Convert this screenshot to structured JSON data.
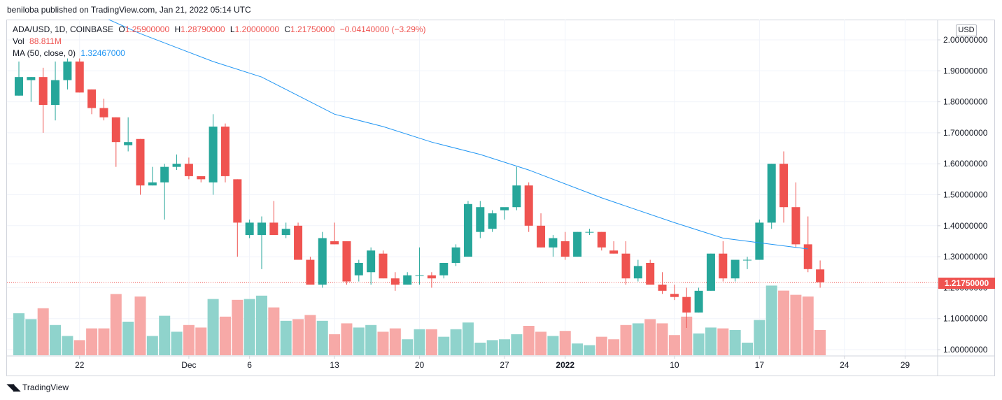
{
  "header": {
    "publish_text": "beniloba published on TradingView.com, Jan 21, 2022 05:14 UTC"
  },
  "legend": {
    "symbol": "ADA/USD, 1D, COINBASE",
    "o_label": "O",
    "o_value": "1.25900000",
    "h_label": "H",
    "h_value": "1.28790000",
    "l_label": "L",
    "l_value": "1.20000000",
    "c_label": "C",
    "c_value": "1.21750000",
    "change": "−0.04140000 (−3.29%)",
    "vol_label": "Vol",
    "vol_value": "88.811M",
    "ma_label": "MA (50, close, 0)",
    "ma_value": "1.32467000"
  },
  "price_scale": {
    "currency_button": "USD",
    "last_price_label": "1.21750000"
  },
  "footer": {
    "brand": "TradingView"
  },
  "colors": {
    "up": "#26a69a",
    "down": "#ef5350",
    "up_vol": "#8fd3cc",
    "down_vol": "#f7a9a7",
    "ma": "#2196f3",
    "grid": "#f0f3fa"
  },
  "chart_data": {
    "type": "candlestick",
    "ylim": [
      0.98,
      2.06
    ],
    "y_ticks": [
      2.0,
      1.9,
      1.8,
      1.7,
      1.6,
      1.5,
      1.4,
      1.3,
      1.2,
      1.1,
      1.0
    ],
    "y_tick_labels": [
      "2.00000000",
      "1.90000000",
      "1.80000000",
      "1.70000000",
      "1.60000000",
      "1.50000000",
      "1.40000000",
      "1.30000000",
      "1.20000000",
      "1.10000000",
      "1.00000000"
    ],
    "x_ticks": [
      {
        "i": 5,
        "label": "22",
        "bold": false
      },
      {
        "i": 14,
        "label": "Dec",
        "bold": false
      },
      {
        "i": 19,
        "label": "6",
        "bold": false
      },
      {
        "i": 26,
        "label": "13",
        "bold": false
      },
      {
        "i": 33,
        "label": "20",
        "bold": false
      },
      {
        "i": 40,
        "label": "27",
        "bold": false
      },
      {
        "i": 45,
        "label": "2022",
        "bold": true
      },
      {
        "i": 54,
        "label": "10",
        "bold": false
      },
      {
        "i": 61,
        "label": "17",
        "bold": false
      },
      {
        "i": 68,
        "label": "24",
        "bold": false
      },
      {
        "i": 73,
        "label": "29",
        "bold": false
      }
    ],
    "candles": [
      {
        "o": 1.82,
        "h": 1.93,
        "l": 1.82,
        "c": 1.88,
        "v": 0.5
      },
      {
        "o": 1.87,
        "h": 1.88,
        "l": 1.8,
        "c": 1.88,
        "v": 0.43
      },
      {
        "o": 1.88,
        "h": 1.91,
        "l": 1.7,
        "c": 1.79,
        "v": 0.56
      },
      {
        "o": 1.79,
        "h": 1.93,
        "l": 1.74,
        "c": 1.87,
        "v": 0.36
      },
      {
        "o": 1.87,
        "h": 1.94,
        "l": 1.84,
        "c": 1.93,
        "v": 0.23
      },
      {
        "o": 1.93,
        "h": 1.94,
        "l": 1.83,
        "c": 1.83,
        "v": 0.18
      },
      {
        "o": 1.84,
        "h": 1.84,
        "l": 1.76,
        "c": 1.78,
        "v": 0.32
      },
      {
        "o": 1.78,
        "h": 1.81,
        "l": 1.74,
        "c": 1.75,
        "v": 0.32
      },
      {
        "o": 1.75,
        "h": 1.75,
        "l": 1.59,
        "c": 1.67,
        "v": 0.73
      },
      {
        "o": 1.66,
        "h": 1.75,
        "l": 1.64,
        "c": 1.67,
        "v": 0.4
      },
      {
        "o": 1.68,
        "h": 1.68,
        "l": 1.5,
        "c": 1.53,
        "v": 0.7
      },
      {
        "o": 1.53,
        "h": 1.59,
        "l": 1.53,
        "c": 1.54,
        "v": 0.23
      },
      {
        "o": 1.54,
        "h": 1.6,
        "l": 1.42,
        "c": 1.59,
        "v": 0.47
      },
      {
        "o": 1.59,
        "h": 1.63,
        "l": 1.58,
        "c": 1.6,
        "v": 0.28
      },
      {
        "o": 1.6,
        "h": 1.62,
        "l": 1.55,
        "c": 1.56,
        "v": 0.36
      },
      {
        "o": 1.56,
        "h": 1.56,
        "l": 1.54,
        "c": 1.55,
        "v": 0.33
      },
      {
        "o": 1.54,
        "h": 1.76,
        "l": 1.5,
        "c": 1.72,
        "v": 0.67
      },
      {
        "o": 1.72,
        "h": 1.73,
        "l": 1.54,
        "c": 1.56,
        "v": 0.46
      },
      {
        "o": 1.55,
        "h": 1.55,
        "l": 1.3,
        "c": 1.41,
        "v": 0.66
      },
      {
        "o": 1.37,
        "h": 1.42,
        "l": 1.36,
        "c": 1.41,
        "v": 0.67
      },
      {
        "o": 1.37,
        "h": 1.43,
        "l": 1.26,
        "c": 1.41,
        "v": 0.71
      },
      {
        "o": 1.41,
        "h": 1.48,
        "l": 1.38,
        "c": 1.37,
        "v": 0.57
      },
      {
        "o": 1.37,
        "h": 1.41,
        "l": 1.36,
        "c": 1.39,
        "v": 0.41
      },
      {
        "o": 1.4,
        "h": 1.41,
        "l": 1.3,
        "c": 1.29,
        "v": 0.43
      },
      {
        "o": 1.29,
        "h": 1.3,
        "l": 1.21,
        "c": 1.21,
        "v": 0.48
      },
      {
        "o": 1.21,
        "h": 1.38,
        "l": 1.2,
        "c": 1.36,
        "v": 0.41
      },
      {
        "o": 1.35,
        "h": 1.41,
        "l": 1.34,
        "c": 1.34,
        "v": 0.25
      },
      {
        "o": 1.35,
        "h": 1.35,
        "l": 1.21,
        "c": 1.22,
        "v": 0.38
      },
      {
        "o": 1.24,
        "h": 1.29,
        "l": 1.22,
        "c": 1.28,
        "v": 0.33
      },
      {
        "o": 1.25,
        "h": 1.33,
        "l": 1.21,
        "c": 1.32,
        "v": 0.36
      },
      {
        "o": 1.31,
        "h": 1.32,
        "l": 1.23,
        "c": 1.23,
        "v": 0.28
      },
      {
        "o": 1.23,
        "h": 1.25,
        "l": 1.19,
        "c": 1.21,
        "v": 0.32
      },
      {
        "o": 1.21,
        "h": 1.25,
        "l": 1.21,
        "c": 1.24,
        "v": 0.19
      },
      {
        "o": 1.24,
        "h": 1.33,
        "l": 1.21,
        "c": 1.24,
        "v": 0.31
      },
      {
        "o": 1.24,
        "h": 1.25,
        "l": 1.2,
        "c": 1.23,
        "v": 0.31
      },
      {
        "o": 1.24,
        "h": 1.28,
        "l": 1.23,
        "c": 1.28,
        "v": 0.22
      },
      {
        "o": 1.28,
        "h": 1.34,
        "l": 1.27,
        "c": 1.33,
        "v": 0.31
      },
      {
        "o": 1.3,
        "h": 1.48,
        "l": 1.3,
        "c": 1.47,
        "v": 0.39
      },
      {
        "o": 1.38,
        "h": 1.48,
        "l": 1.36,
        "c": 1.46,
        "v": 0.15
      },
      {
        "o": 1.39,
        "h": 1.45,
        "l": 1.38,
        "c": 1.44,
        "v": 0.18
      },
      {
        "o": 1.45,
        "h": 1.45,
        "l": 1.42,
        "c": 1.46,
        "v": 0.19
      },
      {
        "o": 1.46,
        "h": 1.59,
        "l": 1.45,
        "c": 1.53,
        "v": 0.25
      },
      {
        "o": 1.53,
        "h": 1.54,
        "l": 1.38,
        "c": 1.4,
        "v": 0.35
      },
      {
        "o": 1.4,
        "h": 1.44,
        "l": 1.33,
        "c": 1.33,
        "v": 0.28
      },
      {
        "o": 1.33,
        "h": 1.37,
        "l": 1.3,
        "c": 1.36,
        "v": 0.23
      },
      {
        "o": 1.35,
        "h": 1.38,
        "l": 1.29,
        "c": 1.3,
        "v": 0.29
      },
      {
        "o": 1.3,
        "h": 1.38,
        "l": 1.3,
        "c": 1.38,
        "v": 0.14
      },
      {
        "o": 1.38,
        "h": 1.39,
        "l": 1.37,
        "c": 1.38,
        "v": 0.12
      },
      {
        "o": 1.38,
        "h": 1.38,
        "l": 1.32,
        "c": 1.33,
        "v": 0.22
      },
      {
        "o": 1.32,
        "h": 1.35,
        "l": 1.31,
        "c": 1.31,
        "v": 0.19
      },
      {
        "o": 1.31,
        "h": 1.35,
        "l": 1.21,
        "c": 1.23,
        "v": 0.36
      },
      {
        "o": 1.23,
        "h": 1.29,
        "l": 1.22,
        "c": 1.27,
        "v": 0.38
      },
      {
        "o": 1.28,
        "h": 1.29,
        "l": 1.21,
        "c": 1.21,
        "v": 0.43
      },
      {
        "o": 1.21,
        "h": 1.25,
        "l": 1.18,
        "c": 1.19,
        "v": 0.38
      },
      {
        "o": 1.18,
        "h": 1.21,
        "l": 1.16,
        "c": 1.17,
        "v": 0.24
      },
      {
        "o": 1.17,
        "h": 1.2,
        "l": 1.07,
        "c": 1.12,
        "v": 0.46
      },
      {
        "o": 1.12,
        "h": 1.2,
        "l": 1.12,
        "c": 1.19,
        "v": 0.26
      },
      {
        "o": 1.19,
        "h": 1.31,
        "l": 1.19,
        "c": 1.31,
        "v": 0.33
      },
      {
        "o": 1.31,
        "h": 1.35,
        "l": 1.22,
        "c": 1.23,
        "v": 0.32
      },
      {
        "o": 1.23,
        "h": 1.29,
        "l": 1.22,
        "c": 1.29,
        "v": 0.3
      },
      {
        "o": 1.29,
        "h": 1.3,
        "l": 1.26,
        "c": 1.29,
        "v": 0.15
      },
      {
        "o": 1.29,
        "h": 1.42,
        "l": 1.29,
        "c": 1.41,
        "v": 0.42
      },
      {
        "o": 1.41,
        "h": 1.6,
        "l": 1.39,
        "c": 1.6,
        "v": 0.83
      },
      {
        "o": 1.6,
        "h": 1.64,
        "l": 1.41,
        "c": 1.46,
        "v": 0.77
      },
      {
        "o": 1.46,
        "h": 1.54,
        "l": 1.33,
        "c": 1.34,
        "v": 0.72
      },
      {
        "o": 1.34,
        "h": 1.43,
        "l": 1.25,
        "c": 1.26,
        "v": 0.7
      },
      {
        "o": 1.259,
        "h": 1.2879,
        "l": 1.2,
        "c": 1.2175,
        "v": 0.3
      }
    ],
    "ma": [
      {
        "i": 0,
        "v": 2.2
      },
      {
        "i": 6,
        "v": 2.09
      },
      {
        "i": 10,
        "v": 2.02
      },
      {
        "i": 16,
        "v": 1.93
      },
      {
        "i": 20,
        "v": 1.88
      },
      {
        "i": 26,
        "v": 1.76
      },
      {
        "i": 30,
        "v": 1.72
      },
      {
        "i": 34,
        "v": 1.67
      },
      {
        "i": 38,
        "v": 1.63
      },
      {
        "i": 42,
        "v": 1.58
      },
      {
        "i": 48,
        "v": 1.49
      },
      {
        "i": 54,
        "v": 1.41
      },
      {
        "i": 58,
        "v": 1.36
      },
      {
        "i": 62,
        "v": 1.34
      },
      {
        "i": 65,
        "v": 1.325
      }
    ]
  }
}
